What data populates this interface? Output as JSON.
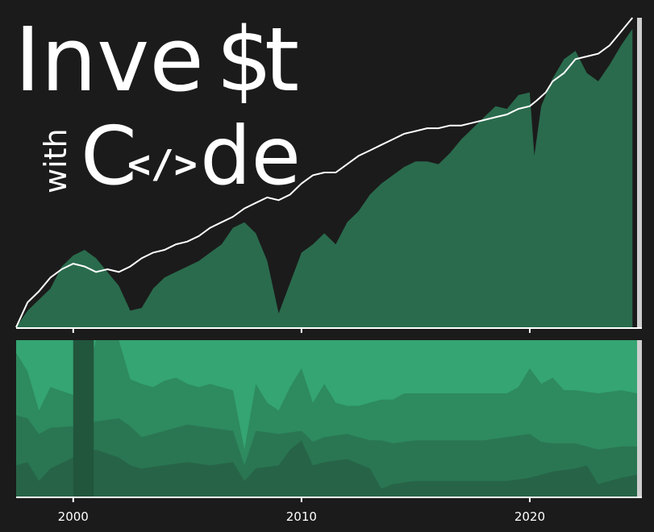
{
  "logo": {
    "line1_prefix": "Inve",
    "line1_dollar": "$",
    "line1_suffix": "t",
    "line2_small": "with",
    "line2_c": "C",
    "line2_code": "</>",
    "line2_suffix": "de"
  },
  "colors": {
    "background": "#1b1b1b",
    "area_main": "#2a6b4d",
    "line": "#ffffff",
    "axis": "#ffffff",
    "band_colors": [
      "#34a573",
      "#2e8a5f",
      "#2a7653",
      "#276447",
      "#21563c",
      "#1a4a32"
    ],
    "right_edge": "#cfcfcf"
  },
  "chart_data": [
    {
      "type": "area",
      "panel": "top",
      "series": [
        {
          "kind": "area",
          "points": [
            [
              1997.5,
              0
            ],
            [
              1998.0,
              0.06
            ],
            [
              1998.5,
              0.1
            ],
            [
              1999.0,
              0.14
            ],
            [
              1999.5,
              0.22
            ],
            [
              2000.0,
              0.26
            ],
            [
              2000.5,
              0.28
            ],
            [
              2001.0,
              0.25
            ],
            [
              2001.5,
              0.2
            ],
            [
              2002.0,
              0.15
            ],
            [
              2002.5,
              0.06
            ],
            [
              2003.0,
              0.07
            ],
            [
              2003.5,
              0.14
            ],
            [
              2004.0,
              0.18
            ],
            [
              2004.5,
              0.2
            ],
            [
              2005.0,
              0.22
            ],
            [
              2005.5,
              0.24
            ],
            [
              2006.0,
              0.27
            ],
            [
              2006.5,
              0.3
            ],
            [
              2007.0,
              0.36
            ],
            [
              2007.5,
              0.38
            ],
            [
              2008.0,
              0.34
            ],
            [
              2008.5,
              0.24
            ],
            [
              2009.0,
              0.05
            ],
            [
              2009.5,
              0.16
            ],
            [
              2010.0,
              0.27
            ],
            [
              2010.5,
              0.3
            ],
            [
              2011.0,
              0.34
            ],
            [
              2011.5,
              0.3
            ],
            [
              2012.0,
              0.38
            ],
            [
              2012.5,
              0.42
            ],
            [
              2013.0,
              0.48
            ],
            [
              2013.5,
              0.52
            ],
            [
              2014.0,
              0.55
            ],
            [
              2014.5,
              0.58
            ],
            [
              2015.0,
              0.6
            ],
            [
              2015.5,
              0.6
            ],
            [
              2016.0,
              0.59
            ],
            [
              2016.5,
              0.63
            ],
            [
              2017.0,
              0.68
            ],
            [
              2017.5,
              0.72
            ],
            [
              2018.0,
              0.76
            ],
            [
              2018.5,
              0.8
            ],
            [
              2019.0,
              0.79
            ],
            [
              2019.5,
              0.84
            ],
            [
              2020.0,
              0.85
            ],
            [
              2020.2,
              0.62
            ],
            [
              2020.5,
              0.8
            ],
            [
              2021.0,
              0.9
            ],
            [
              2021.5,
              0.97
            ],
            [
              2022.0,
              1.0
            ],
            [
              2022.5,
              0.92
            ],
            [
              2023.0,
              0.89
            ],
            [
              2023.5,
              0.95
            ],
            [
              2024.0,
              1.02
            ],
            [
              2024.5,
              1.08
            ]
          ]
        },
        {
          "kind": "line",
          "points": [
            [
              1997.5,
              0
            ],
            [
              1998.0,
              0.09
            ],
            [
              1998.5,
              0.13
            ],
            [
              1999.0,
              0.18
            ],
            [
              1999.5,
              0.21
            ],
            [
              2000.0,
              0.23
            ],
            [
              2000.5,
              0.22
            ],
            [
              2001.0,
              0.2
            ],
            [
              2001.5,
              0.21
            ],
            [
              2002.0,
              0.2
            ],
            [
              2002.5,
              0.22
            ],
            [
              2003.0,
              0.25
            ],
            [
              2003.5,
              0.27
            ],
            [
              2004.0,
              0.28
            ],
            [
              2004.5,
              0.3
            ],
            [
              2005.0,
              0.31
            ],
            [
              2005.5,
              0.33
            ],
            [
              2006.0,
              0.36
            ],
            [
              2006.5,
              0.38
            ],
            [
              2007.0,
              0.4
            ],
            [
              2007.5,
              0.43
            ],
            [
              2008.0,
              0.45
            ],
            [
              2008.5,
              0.47
            ],
            [
              2009.0,
              0.46
            ],
            [
              2009.5,
              0.48
            ],
            [
              2010.0,
              0.52
            ],
            [
              2010.5,
              0.55
            ],
            [
              2011.0,
              0.56
            ],
            [
              2011.5,
              0.56
            ],
            [
              2012.0,
              0.59
            ],
            [
              2012.5,
              0.62
            ],
            [
              2013.0,
              0.64
            ],
            [
              2013.5,
              0.66
            ],
            [
              2014.0,
              0.68
            ],
            [
              2014.5,
              0.7
            ],
            [
              2015.0,
              0.71
            ],
            [
              2015.5,
              0.72
            ],
            [
              2016.0,
              0.72
            ],
            [
              2016.5,
              0.73
            ],
            [
              2017.0,
              0.73
            ],
            [
              2017.5,
              0.74
            ],
            [
              2018.0,
              0.75
            ],
            [
              2018.5,
              0.76
            ],
            [
              2019.0,
              0.77
            ],
            [
              2019.5,
              0.79
            ],
            [
              2020.0,
              0.8
            ],
            [
              2020.3,
              0.82
            ],
            [
              2020.7,
              0.85
            ],
            [
              2021.0,
              0.89
            ],
            [
              2021.5,
              0.92
            ],
            [
              2022.0,
              0.97
            ],
            [
              2022.5,
              0.98
            ],
            [
              2023.0,
              0.99
            ],
            [
              2023.5,
              1.02
            ],
            [
              2024.0,
              1.07
            ],
            [
              2024.5,
              1.12
            ]
          ]
        }
      ]
    },
    {
      "type": "area",
      "panel": "bottom",
      "series": [
        {
          "kind": "band",
          "points": [
            [
              1997.5,
              1.0
            ],
            [
              2024.7,
              1.0
            ]
          ]
        },
        {
          "kind": "band",
          "points": [
            [
              1997.5,
              0.92
            ],
            [
              1998.0,
              0.8
            ],
            [
              1998.5,
              0.55
            ],
            [
              1999.0,
              0.7
            ],
            [
              2000.0,
              0.65
            ],
            [
              2000.5,
              0.7
            ],
            [
              2001.0,
              1.0
            ],
            [
              2002.0,
              1.0
            ],
            [
              2002.5,
              0.75
            ],
            [
              2003.0,
              0.72
            ],
            [
              2003.5,
              0.7
            ],
            [
              2004.0,
              0.74
            ],
            [
              2004.5,
              0.76
            ],
            [
              2005.0,
              0.72
            ],
            [
              2005.5,
              0.7
            ],
            [
              2006.0,
              0.72
            ],
            [
              2006.5,
              0.7
            ],
            [
              2007.0,
              0.68
            ],
            [
              2007.5,
              0.3
            ],
            [
              2008.0,
              0.72
            ],
            [
              2008.5,
              0.6
            ],
            [
              2009.0,
              0.55
            ],
            [
              2009.5,
              0.7
            ],
            [
              2010.0,
              0.82
            ],
            [
              2010.5,
              0.6
            ],
            [
              2011.0,
              0.72
            ],
            [
              2011.5,
              0.6
            ],
            [
              2012.0,
              0.58
            ],
            [
              2012.5,
              0.58
            ],
            [
              2013.0,
              0.6
            ],
            [
              2013.5,
              0.62
            ],
            [
              2014.0,
              0.62
            ],
            [
              2014.5,
              0.66
            ],
            [
              2015.0,
              0.66
            ],
            [
              2016.0,
              0.66
            ],
            [
              2017.0,
              0.66
            ],
            [
              2018.0,
              0.66
            ],
            [
              2019.0,
              0.66
            ],
            [
              2019.5,
              0.7
            ],
            [
              2020.0,
              0.82
            ],
            [
              2020.5,
              0.72
            ],
            [
              2021.0,
              0.76
            ],
            [
              2021.5,
              0.68
            ],
            [
              2022.0,
              0.68
            ],
            [
              2023.0,
              0.66
            ],
            [
              2024.0,
              0.68
            ],
            [
              2024.7,
              0.66
            ]
          ]
        },
        {
          "kind": "band",
          "points": [
            [
              1997.5,
              0.52
            ],
            [
              1998.0,
              0.5
            ],
            [
              1998.5,
              0.4
            ],
            [
              1999.0,
              0.44
            ],
            [
              2000.0,
              0.45
            ],
            [
              2001.0,
              0.48
            ],
            [
              2002.0,
              0.5
            ],
            [
              2002.5,
              0.45
            ],
            [
              2003.0,
              0.38
            ],
            [
              2004.0,
              0.42
            ],
            [
              2005.0,
              0.46
            ],
            [
              2006.0,
              0.44
            ],
            [
              2007.0,
              0.42
            ],
            [
              2007.5,
              0.2
            ],
            [
              2008.0,
              0.42
            ],
            [
              2009.0,
              0.4
            ],
            [
              2010.0,
              0.42
            ],
            [
              2010.5,
              0.35
            ],
            [
              2011.0,
              0.38
            ],
            [
              2012.0,
              0.4
            ],
            [
              2013.0,
              0.36
            ],
            [
              2013.5,
              0.36
            ],
            [
              2014.0,
              0.34
            ],
            [
              2015.0,
              0.36
            ],
            [
              2016.0,
              0.36
            ],
            [
              2017.0,
              0.36
            ],
            [
              2018.0,
              0.36
            ],
            [
              2019.0,
              0.38
            ],
            [
              2020.0,
              0.4
            ],
            [
              2020.5,
              0.35
            ],
            [
              2021.0,
              0.34
            ],
            [
              2022.0,
              0.34
            ],
            [
              2023.0,
              0.3
            ],
            [
              2024.0,
              0.32
            ],
            [
              2024.7,
              0.32
            ]
          ]
        },
        {
          "kind": "band",
          "points": [
            [
              1997.5,
              0.2
            ],
            [
              1998.0,
              0.22
            ],
            [
              1998.5,
              0.1
            ],
            [
              1999.0,
              0.18
            ],
            [
              2000.0,
              0.25
            ],
            [
              2001.0,
              0.3
            ],
            [
              2002.0,
              0.25
            ],
            [
              2002.5,
              0.2
            ],
            [
              2003.0,
              0.18
            ],
            [
              2004.0,
              0.2
            ],
            [
              2005.0,
              0.22
            ],
            [
              2006.0,
              0.2
            ],
            [
              2007.0,
              0.22
            ],
            [
              2007.5,
              0.1
            ],
            [
              2008.0,
              0.18
            ],
            [
              2009.0,
              0.2
            ],
            [
              2009.5,
              0.3
            ],
            [
              2010.0,
              0.36
            ],
            [
              2010.5,
              0.2
            ],
            [
              2011.0,
              0.22
            ],
            [
              2012.0,
              0.24
            ],
            [
              2013.0,
              0.18
            ],
            [
              2013.5,
              0.05
            ],
            [
              2014.0,
              0.08
            ],
            [
              2015.0,
              0.1
            ],
            [
              2016.0,
              0.1
            ],
            [
              2017.0,
              0.1
            ],
            [
              2018.0,
              0.1
            ],
            [
              2019.0,
              0.1
            ],
            [
              2020.0,
              0.12
            ],
            [
              2021.0,
              0.16
            ],
            [
              2022.0,
              0.18
            ],
            [
              2022.5,
              0.2
            ],
            [
              2023.0,
              0.08
            ],
            [
              2024.0,
              0.12
            ],
            [
              2024.7,
              0.14
            ]
          ]
        }
      ]
    }
  ],
  "axis": {
    "x_min": 1997.5,
    "x_max": 2024.7,
    "ticks": [
      {
        "value": 2000,
        "label": "2000"
      },
      {
        "value": 2010,
        "label": "2010"
      },
      {
        "value": 2020,
        "label": "2020"
      }
    ]
  }
}
